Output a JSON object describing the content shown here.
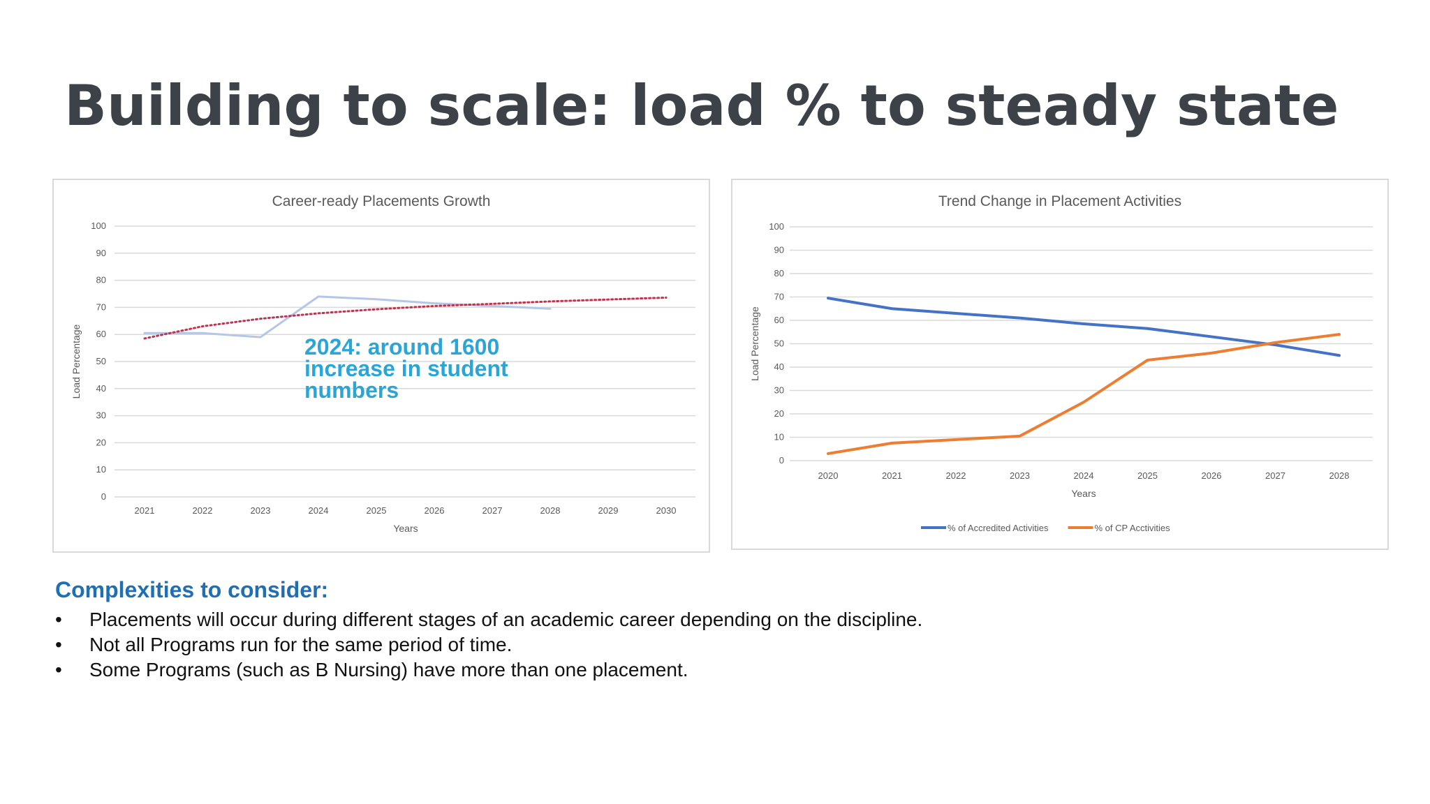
{
  "slide": {
    "title": "Building to scale: load % to steady state",
    "annotation": "2024: around 1600 increase in student numbers",
    "complexities_heading": "Complexities to consider:",
    "bullets": [
      "Placements will occur during different stages of an academic career depending on the discipline.",
      "Not all Programs run for the same period of time.",
      "Some Programs (such as B Nursing) have more than one placement."
    ]
  },
  "chart_data": [
    {
      "type": "line",
      "title": "Career-ready Placements Growth",
      "xlabel": "Years",
      "ylabel": "Load Percentage",
      "categories": [
        "2021",
        "2022",
        "2023",
        "2024",
        "2025",
        "2026",
        "2027",
        "2028",
        "2029",
        "2030"
      ],
      "ylim": [
        0,
        100
      ],
      "yticks": [
        0,
        10,
        20,
        30,
        40,
        50,
        60,
        70,
        80,
        90,
        100
      ],
      "grid": true,
      "series": [
        {
          "values": [
            60.5,
            60.5,
            59,
            74,
            73,
            71.5,
            70.5,
            69.5,
            null,
            null
          ],
          "color": "#b4c7e7",
          "style": "solid"
        }
      ],
      "trendline": {
        "values": [
          58.5,
          63,
          65.8,
          67.8,
          69.3,
          70.5,
          71.3,
          72.2,
          72.9,
          73.6
        ],
        "color": "#c0334d",
        "style": "dotted"
      }
    },
    {
      "type": "line",
      "title": "Trend Change in Placement Activities",
      "xlabel": "Years",
      "ylabel": "Load Percentage",
      "categories": [
        "2020",
        "2021",
        "2022",
        "2023",
        "2024",
        "2025",
        "2026",
        "2027",
        "2028"
      ],
      "ylim": [
        0,
        100
      ],
      "yticks": [
        0,
        10,
        20,
        30,
        40,
        50,
        60,
        70,
        80,
        90,
        100
      ],
      "grid": true,
      "legend": "bottom",
      "series": [
        {
          "name": "% of Accredited Activities",
          "values": [
            69.5,
            65,
            63,
            61,
            58.5,
            56.5,
            53,
            49.5,
            45
          ],
          "color": "#4472c4"
        },
        {
          "name": "% of CP Acctivities",
          "values": [
            3,
            7.5,
            9,
            10.5,
            25,
            43,
            46,
            50.5,
            54
          ],
          "color": "#ed7d31"
        }
      ]
    }
  ]
}
